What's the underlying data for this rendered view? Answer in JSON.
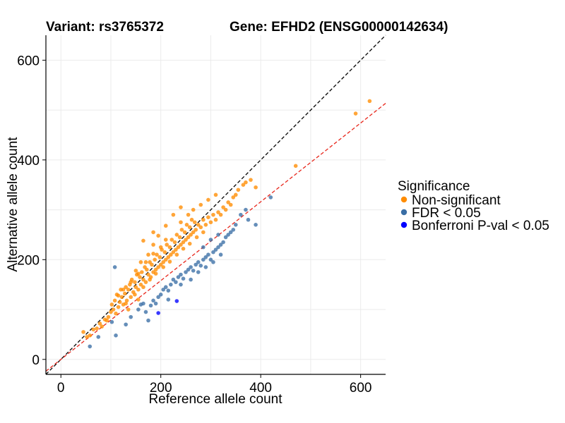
{
  "chart_data": {
    "type": "scatter",
    "title_left": "Variant: rs3765372",
    "title_right": "Gene: EFHD2 (ENSG00000142634)",
    "xlabel": "Reference allele count",
    "ylabel": "Alternative allele count",
    "xlim": [
      -30,
      650
    ],
    "ylim": [
      -30,
      650
    ],
    "xticks": [
      0,
      200,
      400,
      600
    ],
    "yticks": [
      0,
      200,
      400,
      600
    ],
    "grid": true,
    "legend": {
      "title": "Significance",
      "position": "right",
      "entries": [
        {
          "label": "Non-significant",
          "color": "#FF8C00"
        },
        {
          "label": "FDR < 0.05",
          "color": "#3A6EA5"
        },
        {
          "label": "Bonferroni P-val < 0.05",
          "color": "#0000FF"
        }
      ]
    },
    "reference_lines": [
      {
        "name": "identity",
        "slope": 1.0,
        "intercept": 0,
        "color": "#000000",
        "dash": true
      },
      {
        "name": "fit",
        "slope": 0.79,
        "intercept": 0,
        "color": "#E8261B",
        "dash": true
      }
    ],
    "series": [
      {
        "color": "#FF8C00",
        "points": [
          [
            45,
            55
          ],
          [
            52,
            45
          ],
          [
            58,
            48
          ],
          [
            65,
            60
          ],
          [
            72,
            62
          ],
          [
            78,
            72
          ],
          [
            82,
            66
          ],
          [
            88,
            80
          ],
          [
            92,
            78
          ],
          [
            95,
            85
          ],
          [
            100,
            95
          ],
          [
            102,
            110
          ],
          [
            105,
            100
          ],
          [
            108,
            118
          ],
          [
            110,
            92
          ],
          [
            112,
            130
          ],
          [
            115,
            105
          ],
          [
            118,
            115
          ],
          [
            120,
            140
          ],
          [
            122,
            125
          ],
          [
            125,
            110
          ],
          [
            128,
            132
          ],
          [
            130,
            145
          ],
          [
            132,
            118
          ],
          [
            135,
            140
          ],
          [
            138,
            150
          ],
          [
            140,
            125
          ],
          [
            142,
            160
          ],
          [
            145,
            135
          ],
          [
            148,
            155
          ],
          [
            150,
            145
          ],
          [
            152,
            170
          ],
          [
            155,
            140
          ],
          [
            158,
            165
          ],
          [
            160,
            150
          ],
          [
            162,
            175
          ],
          [
            165,
            160
          ],
          [
            168,
            185
          ],
          [
            170,
            155
          ],
          [
            172,
            180
          ],
          [
            175,
            170
          ],
          [
            178,
            195
          ],
          [
            180,
            165
          ],
          [
            182,
            190
          ],
          [
            185,
            175
          ],
          [
            188,
            200
          ],
          [
            190,
            180
          ],
          [
            192,
            210
          ],
          [
            195,
            185
          ],
          [
            198,
            205
          ],
          [
            200,
            190
          ],
          [
            202,
            220
          ],
          [
            205,
            195
          ],
          [
            208,
            215
          ],
          [
            210,
            200
          ],
          [
            212,
            230
          ],
          [
            215,
            205
          ],
          [
            218,
            225
          ],
          [
            220,
            210
          ],
          [
            222,
            240
          ],
          [
            225,
            215
          ],
          [
            228,
            235
          ],
          [
            230,
            220
          ],
          [
            232,
            250
          ],
          [
            235,
            225
          ],
          [
            238,
            245
          ],
          [
            240,
            230
          ],
          [
            242,
            260
          ],
          [
            245,
            235
          ],
          [
            248,
            255
          ],
          [
            250,
            240
          ],
          [
            252,
            270
          ],
          [
            255,
            245
          ],
          [
            258,
            265
          ],
          [
            260,
            250
          ],
          [
            262,
            280
          ],
          [
            265,
            255
          ],
          [
            268,
            275
          ],
          [
            270,
            260
          ],
          [
            275,
            270
          ],
          [
            280,
            265
          ],
          [
            285,
            280
          ],
          [
            290,
            270
          ],
          [
            295,
            285
          ],
          [
            300,
            275
          ],
          [
            305,
            290
          ],
          [
            310,
            280
          ],
          [
            315,
            295
          ],
          [
            320,
            290
          ],
          [
            325,
            305
          ],
          [
            330,
            300
          ],
          [
            335,
            315
          ],
          [
            340,
            310
          ],
          [
            345,
            325
          ],
          [
            350,
            330
          ],
          [
            355,
            340
          ],
          [
            365,
            350
          ],
          [
            370,
            355
          ],
          [
            380,
            360
          ],
          [
            390,
            345
          ],
          [
            470,
            388
          ],
          [
            590,
            493
          ],
          [
            618,
            518
          ],
          [
            130,
            112
          ],
          [
            148,
            130
          ],
          [
            165,
            145
          ],
          [
            178,
            160
          ],
          [
            190,
            172
          ],
          [
            205,
            185
          ],
          [
            218,
            196
          ],
          [
            232,
            210
          ],
          [
            245,
            222
          ],
          [
            258,
            232
          ],
          [
            272,
            245
          ],
          [
            285,
            255
          ],
          [
            150,
            178
          ],
          [
            160,
            195
          ],
          [
            175,
            210
          ],
          [
            185,
            230
          ],
          [
            195,
            248
          ],
          [
            210,
            268
          ],
          [
            225,
            290
          ],
          [
            240,
            305
          ],
          [
            210,
            240
          ],
          [
            200,
            225
          ],
          [
            185,
            212
          ],
          [
            170,
            195
          ],
          [
            155,
            172
          ],
          [
            140,
            155
          ],
          [
            125,
            140
          ],
          [
            115,
            128
          ],
          [
            240,
            275
          ],
          [
            255,
            290
          ],
          [
            265,
            300
          ],
          [
            280,
            310
          ],
          [
            295,
            320
          ],
          [
            310,
            330
          ],
          [
            165,
            238
          ],
          [
            185,
            255
          ],
          [
            155,
            120
          ],
          [
            135,
            100
          ]
        ]
      },
      {
        "color": "#3A6EA5",
        "points": [
          [
            58,
            26
          ],
          [
            75,
            45
          ],
          [
            102,
            75
          ],
          [
            108,
            185
          ],
          [
            110,
            48
          ],
          [
            130,
            70
          ],
          [
            140,
            85
          ],
          [
            155,
            100
          ],
          [
            165,
            112
          ],
          [
            170,
            95
          ],
          [
            180,
            108
          ],
          [
            185,
            118
          ],
          [
            195,
            125
          ],
          [
            200,
            130
          ],
          [
            205,
            140
          ],
          [
            210,
            145
          ],
          [
            215,
            138
          ],
          [
            220,
            150
          ],
          [
            225,
            160
          ],
          [
            230,
            155
          ],
          [
            235,
            165
          ],
          [
            240,
            170
          ],
          [
            245,
            162
          ],
          [
            250,
            175
          ],
          [
            255,
            180
          ],
          [
            260,
            185
          ],
          [
            265,
            178
          ],
          [
            270,
            190
          ],
          [
            275,
            195
          ],
          [
            280,
            188
          ],
          [
            285,
            200
          ],
          [
            290,
            205
          ],
          [
            295,
            210
          ],
          [
            300,
            200
          ],
          [
            305,
            215
          ],
          [
            310,
            220
          ],
          [
            315,
            225
          ],
          [
            320,
            230
          ],
          [
            325,
            235
          ],
          [
            330,
            245
          ],
          [
            335,
            250
          ],
          [
            340,
            255
          ],
          [
            345,
            260
          ],
          [
            350,
            270
          ],
          [
            360,
            290
          ],
          [
            370,
            300
          ],
          [
            375,
            280
          ],
          [
            390,
            270
          ],
          [
            420,
            325
          ],
          [
            175,
            78
          ],
          [
            160,
            110
          ],
          [
            190,
            112
          ],
          [
            215,
            120
          ],
          [
            240,
            150
          ],
          [
            260,
            160
          ],
          [
            275,
            175
          ],
          [
            290,
            185
          ],
          [
            305,
            195
          ],
          [
            320,
            210
          ],
          [
            285,
            225
          ],
          [
            300,
            240
          ],
          [
            315,
            250
          ]
        ]
      },
      {
        "color": "#0000FF",
        "points": [
          [
            195,
            93
          ],
          [
            232,
            117
          ]
        ]
      }
    ]
  }
}
